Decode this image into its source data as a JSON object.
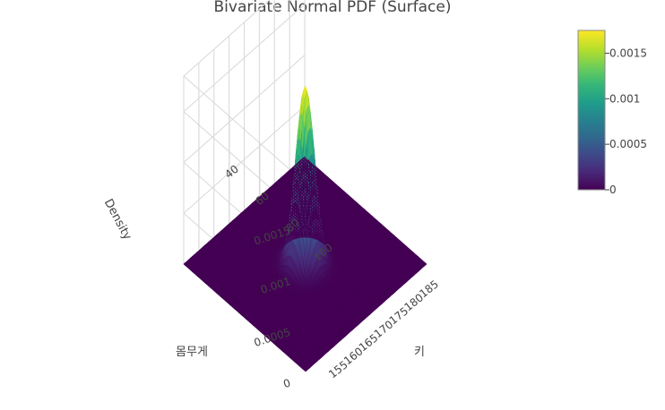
{
  "chart_data": {
    "type": "surface",
    "title": "Bivariate Normal PDF (Surface)",
    "x_axis": {
      "label": "키",
      "range": [
        150,
        190
      ],
      "ticks": [
        "155",
        "160",
        "165",
        "170",
        "175",
        "180",
        "185"
      ]
    },
    "y_axis": {
      "label": "몸무게",
      "range": [
        30,
        110
      ],
      "ticks": [
        "40",
        "60",
        "80",
        "100"
      ]
    },
    "z_axis": {
      "label": "Density",
      "range": [
        0,
        0.00185
      ],
      "ticks": [
        "0",
        "0.0005",
        "0.001",
        "0.0015"
      ]
    },
    "peak": {
      "x": 170,
      "y": 70,
      "z": 0.00175
    },
    "colorscale": "Viridis",
    "colorbar": {
      "min": 0,
      "max": 0.00175,
      "ticks": [
        "0",
        "0.0005",
        "0.001",
        "0.0015"
      ]
    },
    "colors": [
      "#440154",
      "#482878",
      "#3e4989",
      "#31688e",
      "#26828e",
      "#1f9e89",
      "#35b779",
      "#6ece58",
      "#b5de2b",
      "#fde725"
    ]
  }
}
